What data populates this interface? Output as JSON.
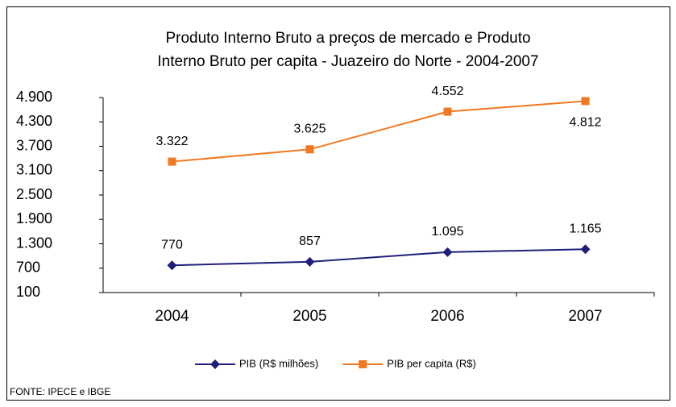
{
  "chart_data": {
    "type": "line",
    "title": [
      "Produto Interno Bruto a preços de mercado  e  Produto",
      "Interno Bruto per capita - Juazeiro do Norte - 2004-2007"
    ],
    "categories": [
      "2004",
      "2005",
      "2006",
      "2007"
    ],
    "series": [
      {
        "name": "PIB (R$ milhões)",
        "color": "#1f1f7a",
        "marker": "diamond",
        "values": [
          770,
          857,
          1095,
          1165
        ],
        "value_labels": [
          "770",
          "857",
          "1.095",
          "1.165"
        ]
      },
      {
        "name": "PIB per capita (R$)",
        "color": "#f07820",
        "marker": "square",
        "values": [
          3322,
          3625,
          4552,
          4812
        ],
        "value_labels": [
          "3.322",
          "3.625",
          "4.552",
          "4.812"
        ]
      }
    ],
    "ylim": [
      100,
      4900
    ],
    "yticks": [
      100,
      700,
      {
        "value": 1300,
        "label": "1.300"
      },
      {
        "value": 1900,
        "label": "1.900"
      },
      {
        "value": 2500,
        "label": "2.500"
      },
      {
        "value": 3100,
        "label": "3.100"
      },
      {
        "value": 3700,
        "label": "3.700"
      },
      {
        "value": 4300,
        "label": "4.300"
      },
      {
        "value": 4900,
        "label": "4.900"
      }
    ],
    "grid": false,
    "legend": "bottom",
    "source": "FONTE: IPECE e IBGE"
  }
}
